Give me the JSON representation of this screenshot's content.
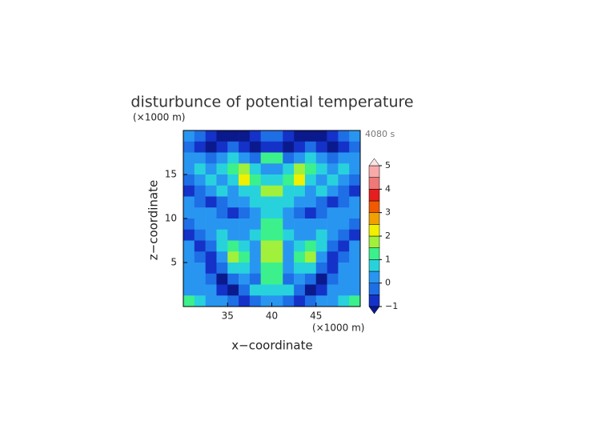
{
  "chart_data": {
    "type": "heatmap",
    "title": "disturbunce of potential temperature",
    "x_label": "x−coordinate",
    "y_label": "z−coordinate",
    "x_unit": "(×1000 m)",
    "y_unit": "(×1000 m)",
    "time_label": "4080 s",
    "xlim": [
      30,
      50
    ],
    "ylim": [
      0,
      20
    ],
    "xticks": [
      35,
      40,
      45
    ],
    "yticks": [
      5,
      10,
      15
    ],
    "x": [
      30.625,
      31.875,
      33.125,
      34.375,
      35.625,
      36.875,
      38.125,
      39.375,
      40.625,
      41.875,
      43.125,
      44.375,
      45.625,
      46.875,
      48.125,
      49.375
    ],
    "y": [
      19.375,
      18.125,
      16.875,
      15.625,
      14.375,
      13.125,
      11.875,
      10.625,
      9.375,
      8.125,
      6.875,
      5.625,
      4.375,
      3.125,
      1.875,
      0.625
    ],
    "z": [
      [
        0.2,
        -0.2,
        -0.7,
        -1.2,
        -1.2,
        -1.2,
        -0.7,
        -0.2,
        -0.2,
        -0.7,
        -1.2,
        -1.2,
        -1.2,
        -0.7,
        -0.2,
        0.2
      ],
      [
        -0.2,
        -0.7,
        -1.2,
        -0.7,
        -0.2,
        -0.7,
        -1.2,
        -0.7,
        -0.7,
        -1.2,
        -0.7,
        -0.2,
        -0.7,
        -1.2,
        -0.7,
        -0.2
      ],
      [
        0.2,
        0.2,
        -0.2,
        0.2,
        0.7,
        0.2,
        -0.2,
        1.2,
        1.2,
        -0.2,
        0.2,
        0.7,
        0.2,
        -0.2,
        0.2,
        0.2
      ],
      [
        0.2,
        0.7,
        0.2,
        0.7,
        1.2,
        1.7,
        0.7,
        0.2,
        0.2,
        0.7,
        1.7,
        1.2,
        0.7,
        0.2,
        0.7,
        0.2
      ],
      [
        -0.2,
        0.2,
        0.7,
        0.2,
        0.7,
        2.2,
        1.2,
        0.7,
        0.7,
        1.2,
        2.2,
        0.7,
        0.2,
        0.7,
        0.2,
        -0.2
      ],
      [
        -0.7,
        -0.2,
        0.2,
        0.7,
        0.2,
        0.7,
        0.7,
        1.7,
        1.7,
        0.7,
        0.7,
        0.2,
        0.7,
        0.2,
        -0.2,
        -0.7
      ],
      [
        0.2,
        -0.2,
        -0.7,
        -0.2,
        0.2,
        0.2,
        0.7,
        0.7,
        0.7,
        0.7,
        0.2,
        0.2,
        -0.2,
        -0.7,
        -0.2,
        0.2
      ],
      [
        0.2,
        0.2,
        0.2,
        -0.2,
        -0.7,
        -0.2,
        0.2,
        0.7,
        0.7,
        0.2,
        -0.2,
        -0.7,
        -0.2,
        0.2,
        0.2,
        0.2
      ],
      [
        -0.2,
        0.2,
        0.2,
        0.2,
        0.2,
        0.2,
        0.2,
        1.2,
        1.2,
        0.2,
        0.2,
        0.2,
        0.2,
        0.2,
        0.2,
        -0.2
      ],
      [
        -0.7,
        -0.2,
        0.2,
        0.7,
        0.2,
        0.2,
        0.7,
        1.2,
        1.2,
        0.7,
        0.2,
        0.2,
        0.7,
        0.2,
        -0.2,
        -0.7
      ],
      [
        0.2,
        -0.7,
        -0.2,
        0.7,
        1.2,
        0.7,
        0.2,
        1.7,
        1.7,
        0.2,
        0.7,
        1.2,
        0.7,
        -0.2,
        -0.7,
        0.2
      ],
      [
        0.2,
        -0.2,
        -0.7,
        0.2,
        1.7,
        1.2,
        0.2,
        1.7,
        1.7,
        0.2,
        1.2,
        1.7,
        0.2,
        -0.7,
        -0.2,
        0.2
      ],
      [
        0.2,
        0.2,
        -0.7,
        -0.2,
        0.7,
        0.7,
        0.2,
        1.2,
        1.2,
        0.2,
        0.7,
        0.7,
        -0.2,
        -0.7,
        0.2,
        0.2
      ],
      [
        0.2,
        0.2,
        -0.2,
        -1.2,
        -0.2,
        0.2,
        -0.2,
        1.2,
        1.2,
        -0.2,
        0.2,
        -0.2,
        -1.2,
        -0.2,
        0.2,
        0.2
      ],
      [
        0.2,
        0.2,
        0.2,
        -0.7,
        -1.2,
        -0.2,
        0.7,
        0.7,
        0.7,
        0.7,
        -0.2,
        -1.2,
        -0.7,
        0.2,
        0.2,
        0.2
      ],
      [
        1.2,
        0.7,
        0.2,
        0.2,
        -0.2,
        -0.7,
        -0.2,
        0.2,
        0.2,
        -0.2,
        -0.7,
        -0.2,
        0.2,
        0.2,
        0.7,
        1.2
      ]
    ],
    "colorbar": {
      "levels": [
        -1,
        -0.5,
        0,
        0.5,
        1,
        1.5,
        2,
        2.5,
        3,
        3.5,
        4,
        4.5,
        5
      ],
      "colors": [
        "#0a1a8c",
        "#1432c8",
        "#1e6ee6",
        "#2896f0",
        "#28d2dc",
        "#3cf08c",
        "#a0f03c",
        "#f0f000",
        "#f0a000",
        "#f05a00",
        "#e61e1e",
        "#f07878",
        "#f8aaaa",
        "#fde4e4"
      ],
      "ticks": [
        {
          "value": -1,
          "label": "−1"
        },
        0,
        1,
        2,
        3,
        4,
        5
      ]
    }
  }
}
